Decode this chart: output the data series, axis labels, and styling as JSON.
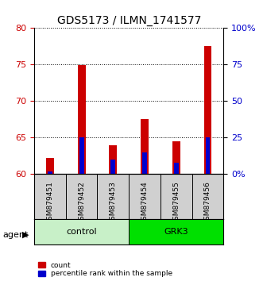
{
  "title": "GDS5173 / ILMN_1741577",
  "samples": [
    "GSM879451",
    "GSM879452",
    "GSM879453",
    "GSM879454",
    "GSM879455",
    "GSM879456"
  ],
  "count_values": [
    62.2,
    74.9,
    64.0,
    67.5,
    64.5,
    77.5
  ],
  "percentile_values": [
    2,
    25,
    10,
    15,
    8,
    25
  ],
  "count_baseline": 60,
  "ylim_left": [
    60,
    80
  ],
  "ylim_right": [
    0,
    100
  ],
  "yticks_left": [
    60,
    65,
    70,
    75,
    80
  ],
  "yticks_right": [
    0,
    25,
    50,
    75,
    100
  ],
  "ytick_labels_right": [
    "0%",
    "25",
    "50",
    "75",
    "100%"
  ],
  "groups": [
    {
      "label": "control",
      "indices": [
        0,
        1,
        2
      ],
      "color": "#c8f0c8"
    },
    {
      "label": "GRK3",
      "indices": [
        3,
        4,
        5
      ],
      "color": "#00e000"
    }
  ],
  "group_label": "agent",
  "bar_width": 0.5,
  "red_color": "#cc0000",
  "blue_color": "#0000cc",
  "count_bar_width": 0.25,
  "percentile_bar_width": 0.15,
  "background_color": "#ffffff",
  "plot_bg_color": "#ffffff",
  "grid_color": "#000000",
  "tick_area_color": "#d0d0d0",
  "legend_count_label": "count",
  "legend_percentile_label": "percentile rank within the sample"
}
